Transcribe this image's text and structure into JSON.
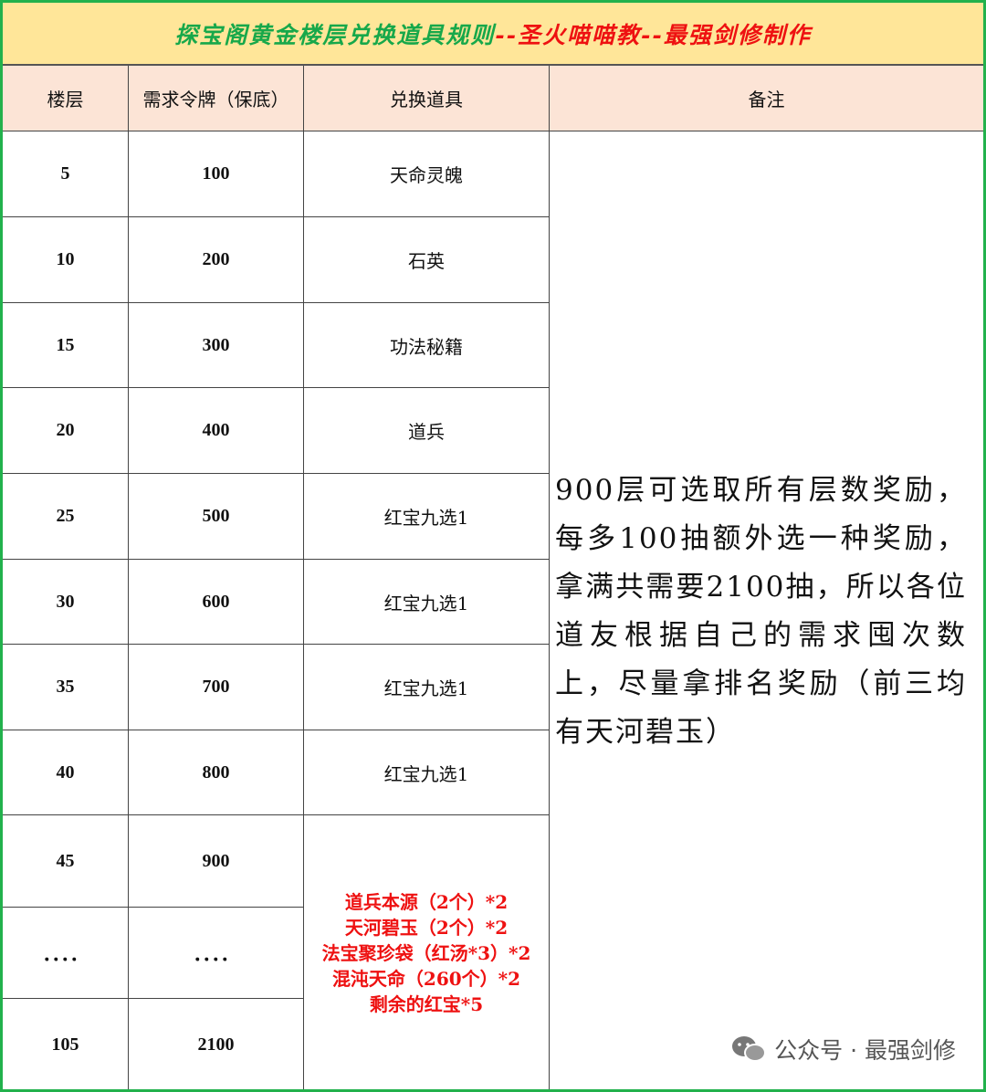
{
  "title": {
    "main": "探宝阁黄金楼层兑换道具规则",
    "sub": "--圣火喵喵教--最强剑修制作"
  },
  "headers": [
    "楼层",
    "需求令牌（保底）",
    "兑换道具",
    "备注"
  ],
  "rows": [
    {
      "floor": "5",
      "tokens": "100",
      "item": "天命灵魄"
    },
    {
      "floor": "10",
      "tokens": "200",
      "item": "石英"
    },
    {
      "floor": "15",
      "tokens": "300",
      "item": "功法秘籍"
    },
    {
      "floor": "20",
      "tokens": "400",
      "item": "道兵"
    },
    {
      "floor": "25",
      "tokens": "500",
      "item": "红宝九选1"
    },
    {
      "floor": "30",
      "tokens": "600",
      "item": "红宝九选1"
    },
    {
      "floor": "35",
      "tokens": "700",
      "item": "红宝九选1"
    },
    {
      "floor": "40",
      "tokens": "800",
      "item": "红宝九选1"
    },
    {
      "floor": "45",
      "tokens": "900"
    },
    {
      "floor": "．．．．",
      "tokens": "．．．．"
    },
    {
      "floor": "105",
      "tokens": "2100"
    }
  ],
  "final_items": [
    "道兵本源（2个）*2",
    "天河碧玉（2个）*2",
    "法宝聚珍袋（红汤*3）*2",
    "混沌天命（260个）*2",
    "剩余的红宝*5"
  ],
  "note": "900层可选取所有层数奖励，每多100抽额外选一种奖励，拿满共需要2100抽，所以各位道友根据自己的需求囤次数上，尽量拿排名奖励（前三均有天河碧玉）",
  "watermark": "公众号 · 最强剑修",
  "colors": {
    "title_bg": "#ffe699",
    "header_bg": "#fce4d6",
    "border": "#22b14c",
    "green_text": "#17a84a",
    "red_text": "#ee1111"
  }
}
